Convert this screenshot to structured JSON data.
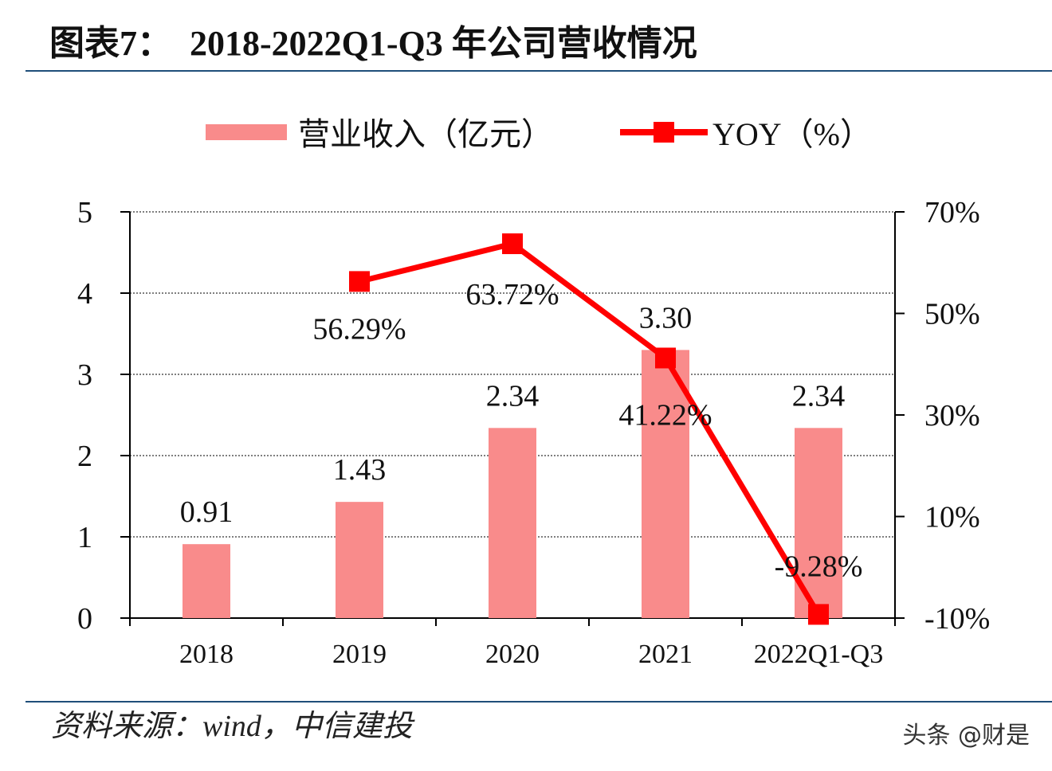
{
  "title": "图表7：  2018-2022Q1-Q3 年公司营收情况",
  "source": "资料来源：wind，中信建投",
  "watermark": "头条 @财是",
  "chart_data": {
    "type": "bar+line",
    "categories": [
      "2018",
      "2019",
      "2020",
      "2021",
      "2022Q1-Q3"
    ],
    "series": [
      {
        "name": "营业收入（亿元）",
        "type": "bar",
        "axis": "left",
        "values": [
          0.91,
          1.43,
          2.34,
          3.3,
          2.34
        ],
        "labels": [
          "0.91",
          "1.43",
          "2.34",
          "3.30",
          "2.34"
        ],
        "color": "#f98b8b"
      },
      {
        "name": "YOY（%）",
        "type": "line",
        "axis": "right",
        "values": [
          null,
          56.29,
          63.72,
          41.22,
          -9.28
        ],
        "labels": [
          "",
          "56.29%",
          "63.72%",
          "41.22%",
          "-9.28%"
        ],
        "color": "#ff0000",
        "marker": "square"
      }
    ],
    "left_axis": {
      "ylim": [
        0,
        5
      ],
      "ticks": [
        "0",
        "1",
        "2",
        "3",
        "4",
        "5"
      ]
    },
    "right_axis": {
      "ylim": [
        -10,
        70
      ],
      "ticks": [
        "-10%",
        "10%",
        "30%",
        "50%",
        "70%"
      ]
    },
    "grid": "dotted horizontal",
    "legend": "top"
  }
}
